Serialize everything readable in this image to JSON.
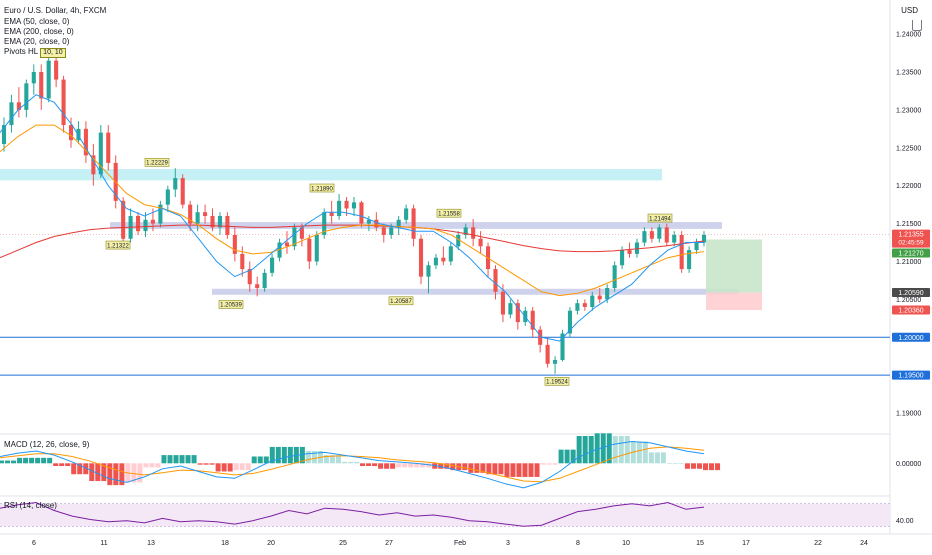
{
  "chart_data": {
    "type": "candlestick",
    "instrument": "Euro / U.S. Dollar, 4h, FXCM",
    "indicators": [
      "EMA (50, close, 0)",
      "EMA (200, close, 0)",
      "EMA (20, close, 0)",
      "Pivots HL (10, 10)"
    ],
    "pivot_badge": "10, 10",
    "currency": "USD",
    "y_axis": {
      "ticks": [
        "1.24000",
        "1.23500",
        "1.23000",
        "1.22500",
        "1.22000",
        "1.21500",
        "1.21000",
        "1.20500",
        "1.20000",
        "1.19500",
        "1.19000"
      ],
      "range": [
        1.1875,
        1.2445
      ]
    },
    "x_axis": {
      "ticks": [
        "6",
        "11",
        "13",
        "18",
        "20",
        "25",
        "27",
        "Feb",
        "3",
        "8",
        "10",
        "15",
        "17",
        "22",
        "24"
      ]
    },
    "price_labels": {
      "last": "1.21355",
      "countdown": "02:45:59",
      "ema": "1.21270",
      "level_gray": "1.20590",
      "stop": "1.20360",
      "s1": "1.20000",
      "s2": "1.19500"
    },
    "pivots": [
      "1.22229",
      "1.21890",
      "1.21558",
      "1.21494",
      "1.21322",
      "1.20539",
      "1.20587",
      "1.19524"
    ],
    "candles": [
      [
        1.2255,
        1.229,
        1.2245,
        1.228
      ],
      [
        1.228,
        1.232,
        1.227,
        1.231
      ],
      [
        1.231,
        1.233,
        1.229,
        1.23
      ],
      [
        1.23,
        1.234,
        1.229,
        1.2335
      ],
      [
        1.2335,
        1.236,
        1.232,
        1.235
      ],
      [
        1.235,
        1.236,
        1.23,
        1.2315
      ],
      [
        1.2315,
        1.237,
        1.231,
        1.2365
      ],
      [
        1.2365,
        1.238,
        1.233,
        1.234
      ],
      [
        1.234,
        1.2345,
        1.227,
        1.228
      ],
      [
        1.228,
        1.229,
        1.225,
        1.226
      ],
      [
        1.226,
        1.2285,
        1.2255,
        1.2275
      ],
      [
        1.2275,
        1.2285,
        1.223,
        1.224
      ],
      [
        1.224,
        1.2255,
        1.22,
        1.2215
      ],
      [
        1.2215,
        1.228,
        1.221,
        1.227
      ],
      [
        1.227,
        1.228,
        1.222,
        1.223
      ],
      [
        1.223,
        1.224,
        1.217,
        1.218
      ],
      [
        1.218,
        1.2185,
        1.212,
        1.213
      ],
      [
        1.213,
        1.217,
        1.2125,
        1.216
      ],
      [
        1.216,
        1.2165,
        1.2135,
        1.214
      ],
      [
        1.214,
        1.2165,
        1.2132,
        1.2155
      ],
      [
        1.2155,
        1.217,
        1.214,
        1.215
      ],
      [
        1.215,
        1.218,
        1.2145,
        1.2175
      ],
      [
        1.2175,
        1.22,
        1.2165,
        1.2195
      ],
      [
        1.2195,
        1.2223,
        1.2185,
        1.221
      ],
      [
        1.221,
        1.2215,
        1.217,
        1.2175
      ],
      [
        1.2175,
        1.218,
        1.214,
        1.215
      ],
      [
        1.215,
        1.2175,
        1.214,
        1.2165
      ],
      [
        1.2165,
        1.2175,
        1.215,
        1.216
      ],
      [
        1.216,
        1.217,
        1.214,
        1.2145
      ],
      [
        1.2145,
        1.2165,
        1.2135,
        1.216
      ],
      [
        1.216,
        1.2165,
        1.213,
        1.2135
      ],
      [
        1.2135,
        1.2145,
        1.21,
        1.211
      ],
      [
        1.211,
        1.212,
        1.208,
        1.209
      ],
      [
        1.209,
        1.21,
        1.206,
        1.207
      ],
      [
        1.207,
        1.208,
        1.2054,
        1.2065
      ],
      [
        1.2065,
        1.209,
        1.206,
        1.2085
      ],
      [
        1.2085,
        1.211,
        1.208,
        1.2105
      ],
      [
        1.2105,
        1.213,
        1.21,
        1.2125
      ],
      [
        1.2125,
        1.214,
        1.211,
        1.212
      ],
      [
        1.212,
        1.215,
        1.2115,
        1.2145
      ],
      [
        1.2145,
        1.215,
        1.212,
        1.213
      ],
      [
        1.213,
        1.2135,
        1.209,
        1.21
      ],
      [
        1.21,
        1.214,
        1.2095,
        1.2135
      ],
      [
        1.2135,
        1.217,
        1.213,
        1.2165
      ],
      [
        1.2165,
        1.218,
        1.215,
        1.216
      ],
      [
        1.216,
        1.2189,
        1.2155,
        1.218
      ],
      [
        1.218,
        1.2185,
        1.216,
        1.217
      ],
      [
        1.217,
        1.2185,
        1.216,
        1.2178
      ],
      [
        1.2178,
        1.218,
        1.2145,
        1.215
      ],
      [
        1.215,
        1.216,
        1.214,
        1.2155
      ],
      [
        1.2155,
        1.2165,
        1.214,
        1.2145
      ],
      [
        1.2145,
        1.215,
        1.2125,
        1.2135
      ],
      [
        1.2135,
        1.215,
        1.213,
        1.2145
      ],
      [
        1.2145,
        1.216,
        1.2135,
        1.2155
      ],
      [
        1.2155,
        1.2175,
        1.215,
        1.217
      ],
      [
        1.217,
        1.2175,
        1.212,
        1.213
      ],
      [
        1.213,
        1.2135,
        1.207,
        1.208
      ],
      [
        1.208,
        1.21,
        1.2058,
        1.2095
      ],
      [
        1.2095,
        1.211,
        1.209,
        1.2105
      ],
      [
        1.2105,
        1.212,
        1.2095,
        1.21
      ],
      [
        1.21,
        1.2125,
        1.2095,
        1.212
      ],
      [
        1.212,
        1.214,
        1.2115,
        1.2135
      ],
      [
        1.2135,
        1.215,
        1.213,
        1.2145
      ],
      [
        1.2145,
        1.2156,
        1.212,
        1.213
      ],
      [
        1.213,
        1.214,
        1.211,
        1.212
      ],
      [
        1.212,
        1.2125,
        1.208,
        1.209
      ],
      [
        1.209,
        1.2095,
        1.205,
        1.206
      ],
      [
        1.206,
        1.207,
        1.202,
        1.203
      ],
      [
        1.203,
        1.205,
        1.2025,
        1.2045
      ],
      [
        1.2045,
        1.205,
        1.201,
        1.202
      ],
      [
        1.202,
        1.204,
        1.2015,
        1.2035
      ],
      [
        1.2035,
        1.204,
        1.2,
        1.201
      ],
      [
        1.201,
        1.2015,
        1.198,
        1.199
      ],
      [
        1.199,
        1.2,
        1.196,
        1.1965
      ],
      [
        1.1965,
        1.1975,
        1.1952,
        1.197
      ],
      [
        1.197,
        1.201,
        1.1968,
        1.2005
      ],
      [
        1.2005,
        1.204,
        1.2,
        1.2035
      ],
      [
        1.2035,
        1.205,
        1.203,
        1.2045
      ],
      [
        1.2045,
        1.205,
        1.2035,
        1.204
      ],
      [
        1.204,
        1.206,
        1.2035,
        1.2055
      ],
      [
        1.2055,
        1.2065,
        1.2045,
        1.205
      ],
      [
        1.205,
        1.207,
        1.2045,
        1.2065
      ],
      [
        1.2065,
        1.21,
        1.206,
        1.2095
      ],
      [
        1.2095,
        1.212,
        1.209,
        1.2115
      ],
      [
        1.2115,
        1.2125,
        1.2105,
        1.211
      ],
      [
        1.211,
        1.213,
        1.2105,
        1.2125
      ],
      [
        1.2125,
        1.2145,
        1.212,
        1.214
      ],
      [
        1.214,
        1.2145,
        1.2125,
        1.213
      ],
      [
        1.213,
        1.2149,
        1.2125,
        1.2145
      ],
      [
        1.2145,
        1.215,
        1.212,
        1.2125
      ],
      [
        1.2125,
        1.214,
        1.212,
        1.2135
      ],
      [
        1.2135,
        1.214,
        1.2085,
        1.209
      ],
      [
        1.209,
        1.212,
        1.2085,
        1.2115
      ],
      [
        1.2115,
        1.213,
        1.211,
        1.2125
      ],
      [
        1.2125,
        1.214,
        1.212,
        1.2135
      ]
    ],
    "ema20": [
      1.227,
      1.23,
      1.232,
      1.231,
      1.228,
      1.224,
      1.22,
      1.217,
      1.216,
      1.217,
      1.216,
      1.213,
      1.21,
      1.208,
      1.209,
      1.211,
      1.213,
      1.215,
      1.2165,
      1.2165,
      1.216,
      1.215,
      1.2145,
      1.214,
      1.214,
      1.2125,
      1.2105,
      1.208,
      1.206,
      1.203,
      1.2,
      1.1995,
      1.202,
      1.204,
      1.2055,
      1.207,
      1.2095,
      1.2115,
      1.2125,
      1.2125
    ],
    "ema50": [
      1.2245,
      1.2265,
      1.228,
      1.228,
      1.2265,
      1.224,
      1.2215,
      1.219,
      1.2175,
      1.217,
      1.2162,
      1.2148,
      1.213,
      1.2115,
      1.211,
      1.2112,
      1.212,
      1.213,
      1.214,
      1.2145,
      1.2148,
      1.2148,
      1.2146,
      1.2145,
      1.2143,
      1.2135,
      1.212,
      1.2105,
      1.209,
      1.2075,
      1.206,
      1.2055,
      1.2058,
      1.2065,
      1.2075,
      1.2085,
      1.2095,
      1.2105,
      1.211,
      1.2113
    ],
    "ema200": [
      1.2105,
      1.2115,
      1.2125,
      1.2133,
      1.2138,
      1.2142,
      1.2144,
      1.2145,
      1.2146,
      1.2147,
      1.2148,
      1.2148,
      1.2147,
      1.2146,
      1.2145,
      1.2145,
      1.2146,
      1.2147,
      1.2148,
      1.2148,
      1.2148,
      1.2147,
      1.2146,
      1.2145,
      1.2143,
      1.214,
      1.2136,
      1.2131,
      1.2126,
      1.2121,
      1.2117,
      1.2114,
      1.2113,
      1.2113,
      1.2114,
      1.2116,
      1.2118,
      1.2121,
      1.2124,
      1.2127
    ],
    "macd_panel": {
      "label": "MACD (12, 26, close, 9)",
      "tick": "0.00000",
      "range": [
        -0.0045,
        0.004
      ],
      "macd": [
        0.001,
        0.0015,
        0.0018,
        0.0012,
        0.0002,
        -0.001,
        -0.0022,
        -0.0028,
        -0.002,
        -0.0008,
        -0.0004,
        -0.0012,
        -0.002,
        -0.0022,
        -0.001,
        0.0003,
        0.001,
        0.0014,
        0.0016,
        0.0012,
        0.0008,
        0.0004,
        0.0002,
        0.0,
        -0.0003,
        -0.0008,
        -0.0015,
        -0.0022,
        -0.003,
        -0.0036,
        -0.0028,
        -0.0012,
        0.0008,
        0.002,
        0.0028,
        0.0032,
        0.003,
        0.0024,
        0.0018,
        0.0014
      ],
      "signal": [
        0.0008,
        0.0011,
        0.0014,
        0.0014,
        0.001,
        0.0003,
        -0.0006,
        -0.0014,
        -0.0017,
        -0.0014,
        -0.001,
        -0.0011,
        -0.0014,
        -0.0017,
        -0.0015,
        -0.0009,
        -0.0002,
        0.0005,
        0.001,
        0.0011,
        0.001,
        0.0008,
        0.0005,
        0.0003,
        0.0001,
        -0.0003,
        -0.0008,
        -0.0014,
        -0.002,
        -0.0026,
        -0.0027,
        -0.0022,
        -0.0012,
        -0.0002,
        0.0008,
        0.0016,
        0.0022,
        0.0024,
        0.0022,
        0.0019
      ]
    },
    "rsi_panel": {
      "label": "RSI (14, close)",
      "tick": "40.00",
      "range": [
        20,
        80
      ],
      "band": [
        30,
        70
      ],
      "values": [
        62,
        68,
        72,
        58,
        48,
        42,
        38,
        40,
        36,
        44,
        38,
        40,
        38,
        34,
        40,
        48,
        58,
        52,
        62,
        60,
        56,
        50,
        54,
        48,
        50,
        46,
        40,
        38,
        34,
        30,
        32,
        44,
        56,
        60,
        66,
        70,
        66,
        72,
        60,
        64
      ]
    }
  },
  "ui": {
    "title": "Euro / U.S. Dollar, 4h, FXCM",
    "legend": [
      "EMA (50, close, 0)",
      "EMA (200, close, 0)",
      "EMA (20, close, 0)"
    ],
    "pivot_label": "Pivots HL",
    "currency": "USD",
    "macd_label": "MACD (12, 26, close, 9)",
    "rsi_label": "RSI (14, close)",
    "colors": {
      "up": "#26a69a",
      "down": "#ef5350",
      "ema20": "#2196f3",
      "ema50": "#ff9800",
      "ema200": "#e53935",
      "macd": "#2196f3",
      "signal": "#ff9800",
      "rsi": "#7b1fa2",
      "zone_cyan": "#b2ebf2",
      "zone_purple": "#c5cae9",
      "profit": "#c8e6c9",
      "loss": "#ffcdd2",
      "hline": "#1e6fd9",
      "gray_label": "#4a4a4a",
      "ema_label": "#43a047"
    }
  }
}
